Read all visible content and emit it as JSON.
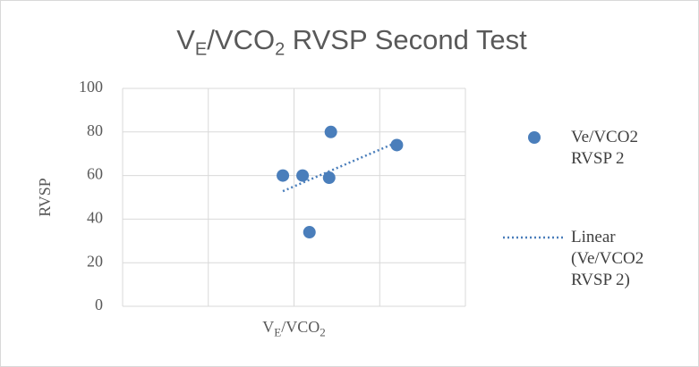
{
  "chart_data": {
    "type": "scatter",
    "title": [
      {
        "text": "V"
      },
      {
        "text": "E",
        "sub": true
      },
      {
        "text": "/VCO"
      },
      {
        "text": "2",
        "sub": true
      },
      {
        "text": " RVSP Second Test"
      }
    ],
    "x_label": [
      {
        "text": "V"
      },
      {
        "text": "E",
        "sub": true
      },
      {
        "text": "/VCO"
      },
      {
        "text": "2",
        "sub": true
      }
    ],
    "y_label": "RVSP",
    "series": [
      {
        "name": "Ve/VCO2 RVSP 2",
        "color": "#4a7ebb",
        "x": [
          18.7,
          21.0,
          21.8,
          24.1,
          24.3,
          32.0
        ],
        "values": [
          60,
          60,
          34,
          59,
          80,
          74
        ]
      }
    ],
    "trendline": {
      "name": "Linear (Ve/VCO2 RVSP 2)",
      "type": "linear",
      "color": "#4a7ebb",
      "style": "dotted"
    },
    "xlim": [
      0,
      40
    ],
    "xticks": [
      0,
      10,
      20,
      30,
      40
    ],
    "x_tick_labels": false,
    "ylim": [
      0,
      100
    ],
    "yticks": [
      0,
      20,
      40,
      60,
      80,
      100
    ],
    "grid": true,
    "legend": "right"
  }
}
